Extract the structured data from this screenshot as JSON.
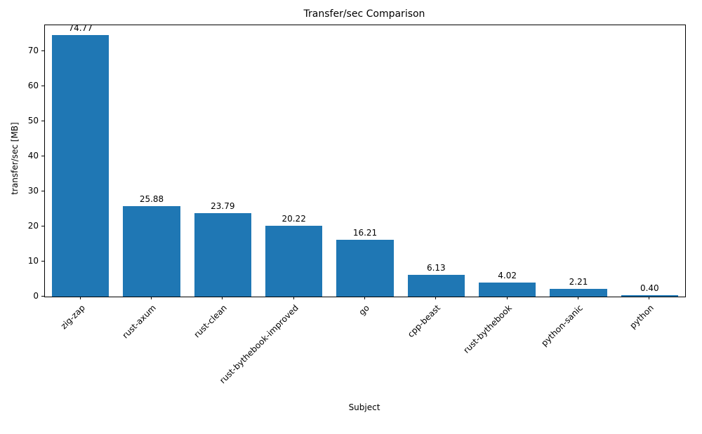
{
  "chart_data": {
    "type": "bar",
    "title": "Transfer/sec Comparison",
    "xlabel": "Subject",
    "ylabel": "transfer/sec [MB]",
    "categories": [
      "zig-zap",
      "rust-axum",
      "rust-clean",
      "rust-bythebook-improved",
      "go",
      "cpp-beast",
      "rust-bythebook",
      "python-sanic",
      "python"
    ],
    "values": [
      74.77,
      25.88,
      23.79,
      20.22,
      16.21,
      6.13,
      4.02,
      2.21,
      0.4
    ],
    "value_labels": [
      "74.77",
      "25.88",
      "23.79",
      "20.22",
      "16.21",
      "6.13",
      "4.02",
      "2.21",
      "0.40"
    ],
    "bar_color": "#1f77b4",
    "axis_color": "#000000",
    "ylim": [
      0,
      77.5
    ],
    "yticks": [
      0,
      10,
      20,
      30,
      40,
      50,
      60,
      70
    ],
    "grid": false,
    "legend_position": "none",
    "bar_width_fraction": 0.8
  }
}
